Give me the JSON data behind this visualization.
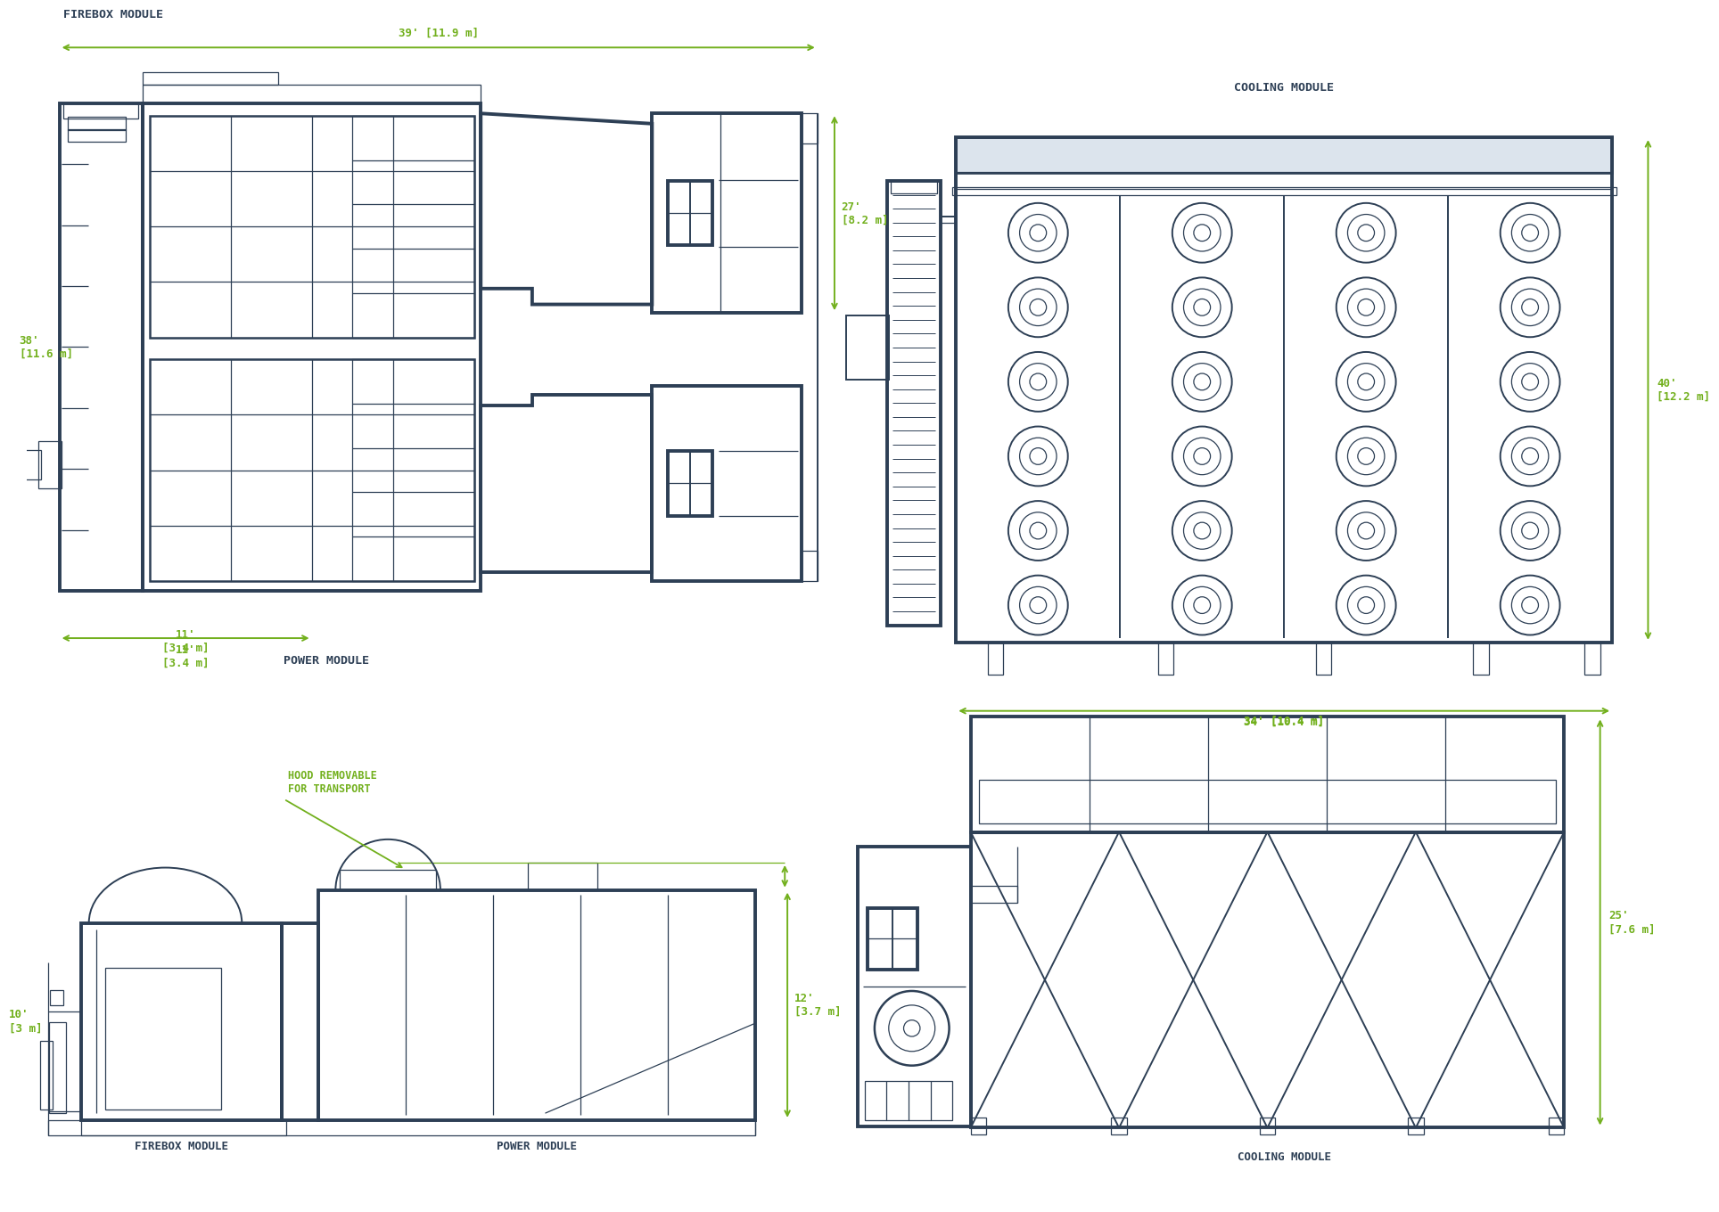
{
  "bg_color": "#ffffff",
  "line_color": "#2d3f55",
  "dim_color": "#72b01d",
  "text_color": "#2d3f55",
  "labels": {
    "firebox_top": "FIREBOX MODULE",
    "power_top": "POWER MODULE",
    "cooling_top": "COOLING MODULE",
    "firebox_bot": "FIREBOX MODULE",
    "power_bot": "POWER MODULE",
    "cooling_bot": "COOLING MODULE",
    "hood": "HOOD REMOVABLE\nFOR TRANSPORT"
  },
  "dims": {
    "top_width": "39' [11.9 m]",
    "top_right_h": "27'\n[8.2 m]",
    "left_h": "38'\n[11.6 m]",
    "bot_left_w": "11'\n[3.4 m]",
    "cool_w": "34' [10.4 m]",
    "cool_h": "40'\n[12.2 m]",
    "side_left_h": "10'\n[3 m]",
    "side_right_h": "12'\n[3.7 m]",
    "cool_side_h": "25'\n[7.6 m]"
  }
}
